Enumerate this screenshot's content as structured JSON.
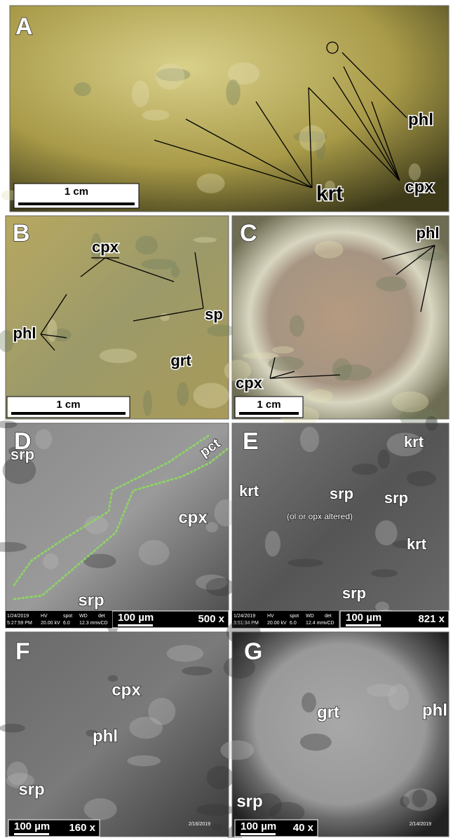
{
  "panels": [
    {
      "letter": "A",
      "labels": [
        "phl",
        "cpx",
        "krt"
      ],
      "scale_bar": "1 cm"
    },
    {
      "letter": "B",
      "labels": [
        "cpx",
        "sp",
        "phl",
        "grt"
      ],
      "scale_bar": "1 cm"
    },
    {
      "letter": "C",
      "labels": [
        "phl",
        "cpx"
      ],
      "scale_bar": "1 cm"
    },
    {
      "letter": "D",
      "labels": [
        "srp",
        "pct",
        "cpx",
        "srp"
      ],
      "scale_bar": "100 µm",
      "magnification": "500 x",
      "info_bar": {
        "date": "1/24/2019",
        "time": "5:27:59 PM",
        "hv_label": "HV",
        "hv": "20.00 kV",
        "spot_label": "spot",
        "spot": "6.0",
        "wd_label": "WD",
        "wd": "12.3 mm",
        "det_label": "det",
        "det": "vCD"
      }
    },
    {
      "letter": "E",
      "labels": [
        "krt",
        "krt",
        "srp",
        "srp",
        "krt",
        "srp"
      ],
      "note": "(ol or opx altered)",
      "scale_bar": "100 µm",
      "magnification": "821 x",
      "info_bar": {
        "date": "1/24/2019",
        "time": "3:51:34 PM",
        "hv_label": "HV",
        "hv": "20.00 kV",
        "spot_label": "spot",
        "spot": "6.0",
        "wd_label": "WD",
        "wd": "12.4 mm",
        "det_label": "det",
        "det": "vCD"
      }
    },
    {
      "letter": "F",
      "labels": [
        "cpx",
        "phl",
        "srp"
      ],
      "scale_bar": "100 µm",
      "magnification": "160 x",
      "date": "2/16/2019"
    },
    {
      "letter": "G",
      "labels": [
        "grt",
        "phl",
        "srp"
      ],
      "scale_bar": "100 µm",
      "magnification": "40 x",
      "date": "2/14/2019"
    }
  ]
}
